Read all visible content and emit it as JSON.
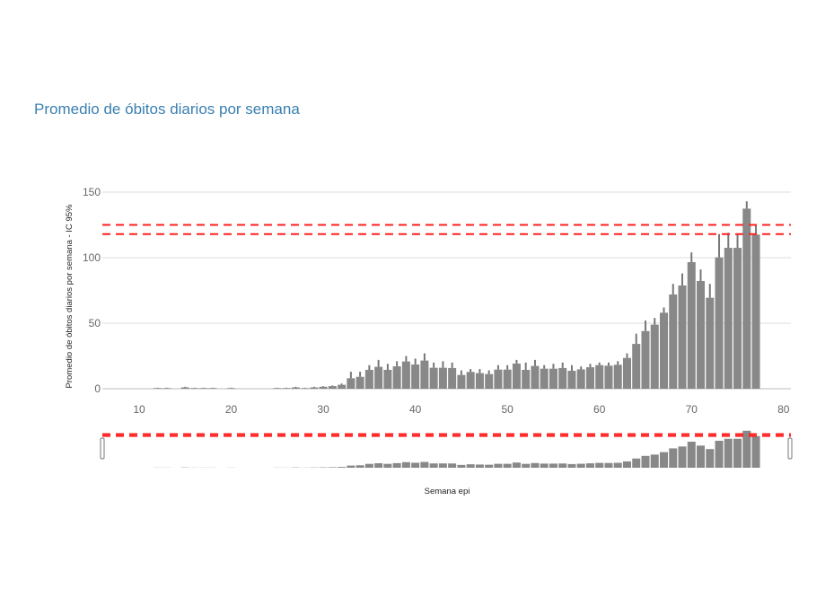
{
  "chart_data": {
    "type": "bar",
    "title": "Promedio de óbitos diarios por semana",
    "xlabel": "Semana epi",
    "ylabel": "Promedio de óbitos diarios por semana - IC 95%",
    "xlim": [
      6,
      80.8
    ],
    "ylim": [
      0,
      150
    ],
    "xticks": [
      10,
      20,
      30,
      40,
      50,
      60,
      70,
      80
    ],
    "yticks": [
      0,
      50,
      100,
      150
    ],
    "grid": true,
    "bar_color": "#888888",
    "error_bar_color": "#777777",
    "reference_lines": [
      {
        "y": 125,
        "color": "#ff2020",
        "style": "dashed"
      },
      {
        "y": 118,
        "color": "#ff2020",
        "style": "dashed"
      }
    ],
    "range_slider": true,
    "x": [
      12,
      13,
      15,
      16,
      17,
      18,
      20,
      25,
      26,
      27,
      28,
      29,
      30,
      31,
      32,
      33,
      34,
      35,
      36,
      37,
      38,
      39,
      40,
      41,
      42,
      43,
      44,
      45,
      46,
      47,
      48,
      49,
      50,
      51,
      52,
      53,
      54,
      55,
      56,
      57,
      58,
      59,
      60,
      61,
      62,
      63,
      64,
      65,
      66,
      67,
      68,
      69,
      70,
      71,
      72,
      73,
      74,
      75,
      76,
      77
    ],
    "values": [
      0.5,
      0.5,
      1,
      0.5,
      0.5,
      0.5,
      0.5,
      0.5,
      0.5,
      1,
      0.5,
      1,
      1.5,
      2,
      3,
      8,
      9.1,
      14.4,
      16.7,
      14.4,
      17.1,
      20.8,
      18.5,
      21.5,
      16,
      16,
      15.8,
      10.5,
      12.8,
      11.9,
      11.2,
      14.6,
      14.6,
      19.2,
      14.4,
      17.4,
      15.3,
      15.3,
      15.8,
      13.7,
      14.8,
      16.4,
      18,
      17.6,
      18.3,
      23.5,
      34.2,
      44,
      48.9,
      58,
      71.9,
      78.8,
      96.6,
      82.2,
      69.4,
      100.2,
      107.5,
      107.5,
      137.4,
      117.6
    ],
    "upper_ci": [
      0.8,
      0.8,
      1.5,
      0.8,
      0.8,
      0.8,
      0.8,
      0.8,
      0.8,
      1.5,
      0.8,
      1.5,
      2,
      2.5,
      4,
      13,
      13,
      18,
      22,
      19,
      21,
      25,
      23,
      27,
      20,
      21,
      20,
      14,
      15,
      15,
      14,
      18,
      18,
      22,
      20,
      22,
      18,
      19,
      20,
      18,
      17,
      19,
      20,
      20,
      21,
      27,
      42,
      52,
      54,
      62,
      80,
      88,
      104,
      91,
      80,
      118,
      119,
      118,
      143,
      125
    ]
  }
}
